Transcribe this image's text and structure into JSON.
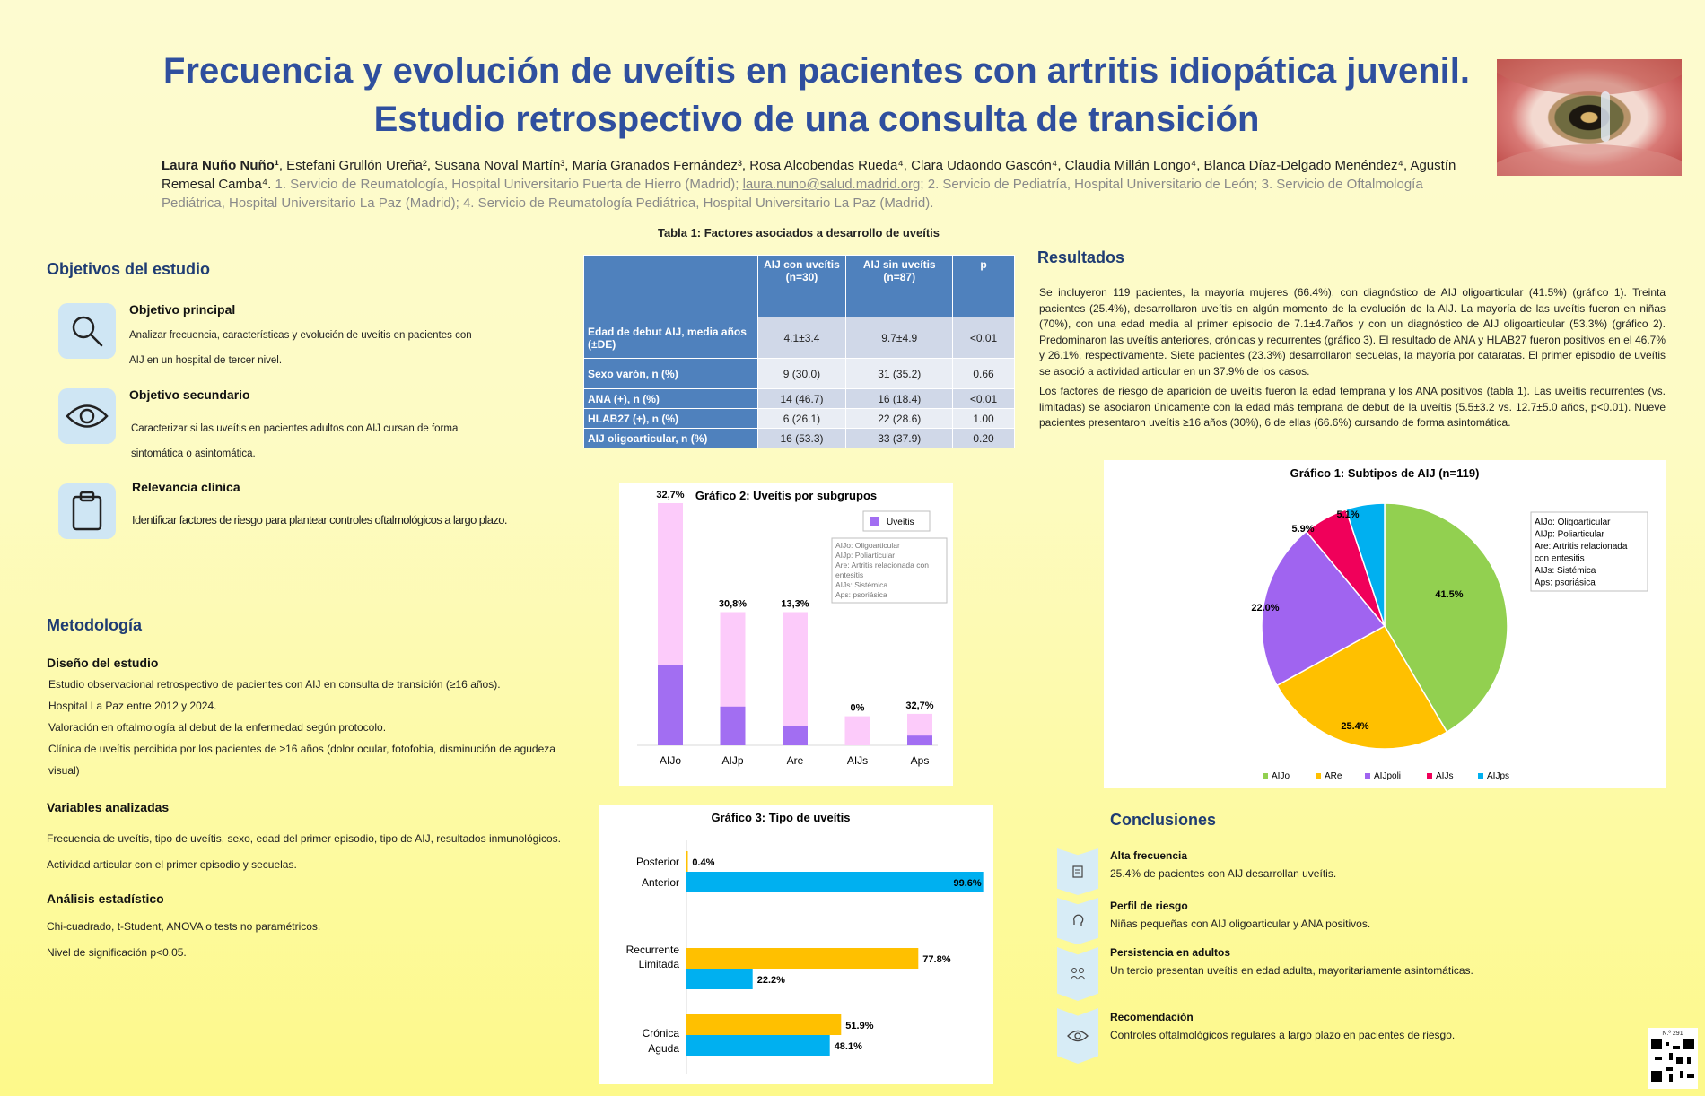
{
  "title": {
    "line1": "Frecuencia y evolución de uveítis en pacientes con artritis idiopática juvenil.",
    "line2": "Estudio retrospectivo de una consulta de transición"
  },
  "authors": {
    "main": "Laura Nuño Nuño¹",
    "rest": ", Estefani Grullón Ureña², Susana Noval Martín³, María Granados Fernández³, Rosa Alcobendas Rueda⁴, Clara Udaondo Gascón⁴, Claudia Millán Longo⁴, Blanca Díaz-Delgado Menéndez⁴, Agustín Remesal Camba⁴.",
    "aff1": " 1. Servicio de Reumatología, Hospital Universitario Puerta de Hierro (Madrid); ",
    "email": "laura.nuno@salud.madrid.org",
    "aff2": "; 2. Servicio de Pediatría, Hospital Universitario de León; 3. Servicio de Oftalmología Pediátrica, Hospital Universitario La Paz (Madrid); 4. Servicio de Reumatología Pediátrica, Hospital Universitario La Paz (Madrid)."
  },
  "objectives": {
    "heading": "Objetivos del estudio",
    "items": [
      {
        "title": "Objetivo principal",
        "text": "Analizar frecuencia, características y evolución de uveítis en pacientes con AIJ en un hospital de tercer nivel.",
        "icon": "search-icon"
      },
      {
        "title": "Objetivo secundario",
        "text": "Caracterizar si las uveítis en pacientes adultos con AIJ cursan de forma sintomática o asintomática.",
        "icon": "eye-icon"
      },
      {
        "title": "Relevancia clínica",
        "text": "Identificar factores de riesgo para plantear controles oftalmológicos a largo plazo.",
        "icon": "clipboard-icon"
      }
    ]
  },
  "methods": {
    "heading": "Metodología",
    "design_title": "Diseño del estudio",
    "design_lines": [
      "Estudio observacional retrospectivo de pacientes con AIJ en consulta de transición (≥16 años).",
      "Hospital La Paz entre 2012 y 2024.",
      "Valoración en oftalmología al debut de la enfermedad según protocolo.",
      "Clínica de uveítis percibida por los pacientes de ≥16 años (dolor ocular, fotofobia, disminución de agudeza visual)"
    ],
    "vars_title": "Variables analizadas",
    "vars_lines": [
      "Frecuencia de uveítis, tipo de uveítis, sexo, edad del primer episodio, tipo de AIJ, resultados inmunológicos.",
      "Actividad articular con el primer episodio y secuelas."
    ],
    "stats_title": "Análisis estadístico",
    "stats_lines": [
      "Chi-cuadrado, t-Student, ANOVA o tests no paramétricos.",
      "Nivel de significación p<0.05."
    ]
  },
  "table1": {
    "caption": "Tabla 1: Factores asociados a desarrollo de uveítis",
    "headers": [
      "",
      "AIJ con uveítis (n=30)",
      "AIJ sin uveítis (n=87)",
      "p"
    ],
    "rows": [
      [
        "Edad de debut AIJ, media años (±DE)",
        "4.1±3.4",
        "9.7±4.9",
        "<0.01"
      ],
      [
        "Sexo varón, n (%)",
        "9 (30.0)",
        "31 (35.2)",
        "0.66"
      ],
      [
        "ANA (+), n (%)",
        "14 (46.7)",
        "16 (18.4)",
        "<0.01"
      ],
      [
        "HLAB27 (+), n (%)",
        "6 (26.1)",
        "22 (28.6)",
        "1.00"
      ],
      [
        "AIJ oligoarticular, n (%)",
        "16 (53.3)",
        "33 (37.9)",
        "0.20"
      ]
    ]
  },
  "results": {
    "heading": "Resultados",
    "p1": "Se incluyeron 119 pacientes, la mayoría mujeres (66.4%), con diagnóstico de AIJ oligoarticular (41.5%) (gráfico 1). Treinta pacientes (25.4%), desarrollaron uveítis en algún momento de la evolución de la AIJ. La mayoría de las uveítis fueron en niñas (70%), con una edad media al primer episodio de 7.1±4.7años y con un diagnóstico de AIJ oligoarticular (53.3%) (gráfico 2). Predominaron las uveítis anteriores, crónicas y recurrentes (gráfico 3). El resultado de ANA y HLAB27 fueron positivos en el 46.7% y 26.1%, respectivamente. Siete pacientes (23.3%) desarrollaron secuelas, la mayoría por cataratas. El primer episodio de uveítis se asoció a actividad articular en un 37.9% de los casos.",
    "p2": "Los factores de riesgo de aparición de uveítis fueron la edad temprana y los ANA positivos (tabla 1). Las uveítis recurrentes (vs. limitadas) se asociaron únicamente con la edad más temprana de debut de la uveítis (5.5±3.2 vs. 12.7±5.0 años, p<0.01). Nueve pacientes presentaron uveítis ≥16 años (30%), 6 de ellas (66.6%) cursando de forma asintomática."
  },
  "chart_data": [
    {
      "type": "bar",
      "title": "Gráfico 2: Uveítis por subgrupos",
      "categories": [
        "AIJo",
        "AIJp",
        "Are",
        "AIJs",
        "Aps"
      ],
      "series": [
        {
          "name": "Uveítis",
          "values": [
            32.7,
            30.8,
            13.3,
            0,
            32.7
          ]
        }
      ],
      "data_labels": [
        "32,7%",
        "30,8%",
        "13,3%",
        "0%",
        "32,7%"
      ],
      "total_height_pct": [
        100,
        55,
        55,
        12,
        13
      ],
      "uveitis_height_pct": [
        33,
        16,
        8,
        0,
        4
      ],
      "legend_notes": [
        "AIJo: Oligoarticular",
        "AIJp: Poliarticular",
        "Are: Artritis relacionada con entesitis",
        "AIJs: Sistémica",
        "Aps: psoriásica"
      ],
      "colors": {
        "uveitis": "#a26ef2",
        "total": "#fccbfa"
      }
    },
    {
      "type": "pie",
      "title": "Gráfico 1: Subtipos de AIJ (n=119)",
      "labels": [
        "AIJo",
        "ARe",
        "AIJpoli",
        "AIJs",
        "AIJps"
      ],
      "values": [
        41.5,
        25.4,
        22.0,
        5.9,
        5.1
      ],
      "data_labels": [
        "41.5%",
        "25.4%",
        "22.0%",
        "5.9%",
        "5.1%"
      ],
      "colors": [
        "#92d050",
        "#ffc000",
        "#a064f0",
        "#f0005a",
        "#00b0f0"
      ],
      "legend_notes": [
        "AIJo: Oligoarticular",
        "AIJp: Poliarticular",
        "Are: Artritis relacionada con entesitis",
        "AIJs: Sistémica",
        "Aps: psoriásica"
      ]
    },
    {
      "type": "bar",
      "orientation": "horizontal",
      "title": "Gráfico 3: Tipo de uveítis",
      "groups": [
        {
          "bars": [
            {
              "label": "Posterior",
              "value": 0.4,
              "text": "0.4%",
              "color": "#ffc000"
            },
            {
              "label": "Anterior",
              "value": 99.6,
              "text": "99.6%",
              "color": "#00b0f0"
            }
          ]
        },
        {
          "bars": [
            {
              "label": "Recurrente",
              "value": 77.8,
              "text": "77.8%",
              "color": "#ffc000"
            },
            {
              "label": "Limitada",
              "value": 22.2,
              "text": "22.2%",
              "color": "#00b0f0"
            }
          ]
        },
        {
          "bars": [
            {
              "label": "Crónica",
              "value": 51.9,
              "text": "51.9%",
              "color": "#ffc000"
            },
            {
              "label": "Aguda",
              "value": 48.1,
              "text": "48.1%",
              "color": "#00b0f0"
            }
          ]
        }
      ],
      "xlim": [
        0,
        100
      ]
    }
  ],
  "conclusions": {
    "heading": "Conclusiones",
    "items": [
      {
        "title": "Alta frecuencia",
        "text": "25.4% de pacientes con AIJ desarrollan uveítis.",
        "icon": "document-icon"
      },
      {
        "title": "Perfil de riesgo",
        "text": "Niñas pequeñas con AIJ oligoarticular y ANA positivos.",
        "icon": "head-icon"
      },
      {
        "title": "Persistencia en adultos",
        "text": "Un tercio presentan uveítis en edad adulta, mayoritariamente asintomáticas.",
        "icon": "people-icon"
      },
      {
        "title": "Recomendación",
        "text": "Controles oftalmológicos regulares a largo plazo en pacientes de riesgo.",
        "icon": "eye-icon"
      }
    ]
  },
  "poster_number": "N.º 291"
}
